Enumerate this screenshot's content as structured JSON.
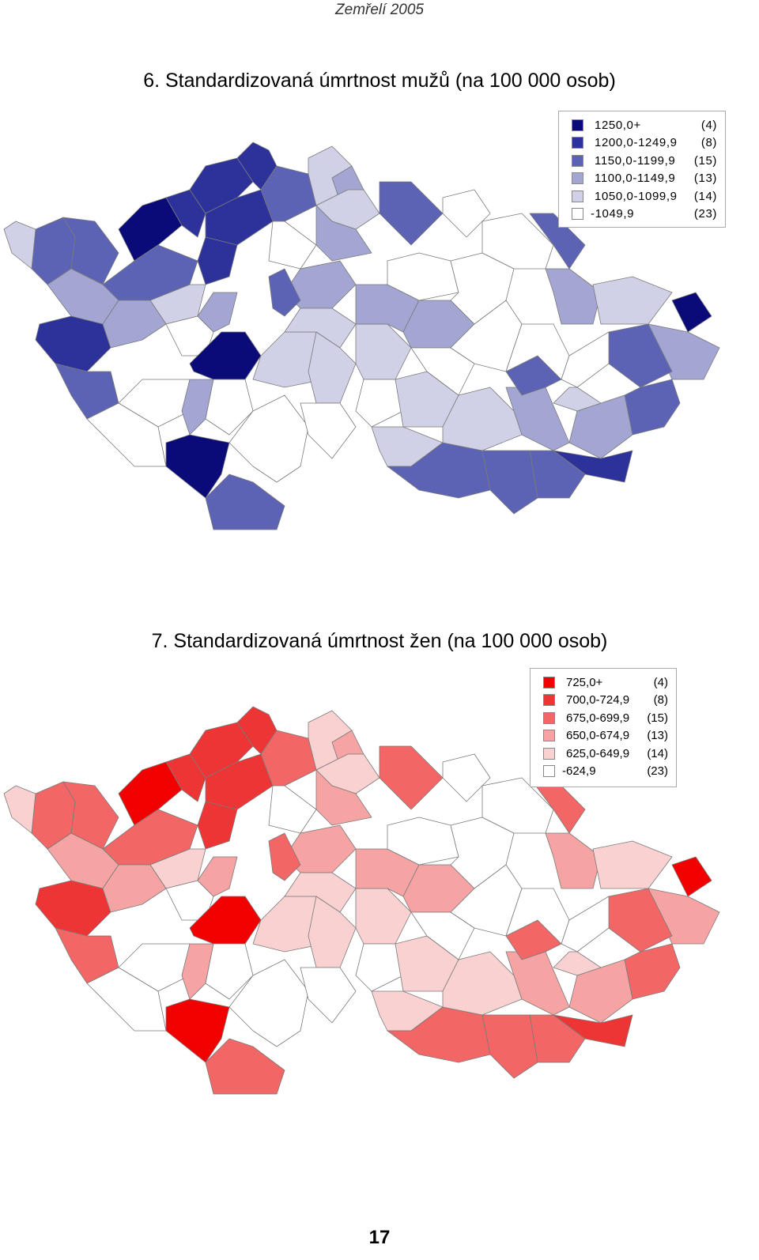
{
  "header": {
    "text": "Zemřelí 2005"
  },
  "maps": [
    {
      "title": "6. Standardizovaná úmrtnost mužů (na 100 000 osob)",
      "legend": [
        {
          "range": "1250,0+",
          "count": "(4)",
          "color": "#0a0a78"
        },
        {
          "range": "1200,0-1249,9",
          "count": "(8)",
          "color": "#2c329a"
        },
        {
          "range": "1150,0-1199,9",
          "count": "(15)",
          "color": "#5c63b4"
        },
        {
          "range": "1100,0-1149,9",
          "count": "(13)",
          "color": "#a3a5d2"
        },
        {
          "range": "1050,0-1099,9",
          "count": "(14)",
          "color": "#d0d1e6"
        },
        {
          "range": "-1049,9",
          "count": "(23)",
          "color": "#ffffff"
        }
      ]
    },
    {
      "title": "7. Standardizovaná úmrtnost žen (na 100 000 osob)",
      "legend": [
        {
          "range": "725,0+",
          "count": "(4)",
          "color": "#f20000"
        },
        {
          "range": "700,0-724,9",
          "count": "(8)",
          "color": "#ee3535"
        },
        {
          "range": "675,0-699,9",
          "count": "(15)",
          "color": "#f36666"
        },
        {
          "range": "650,0-674,9",
          "count": "(13)",
          "color": "#f6a3a3"
        },
        {
          "range": "625,0-649,9",
          "count": "(14)",
          "color": "#fad1d1"
        },
        {
          "range": "-624,9",
          "count": "(23)",
          "color": "#ffffff"
        }
      ]
    }
  ],
  "page_number": "17"
}
